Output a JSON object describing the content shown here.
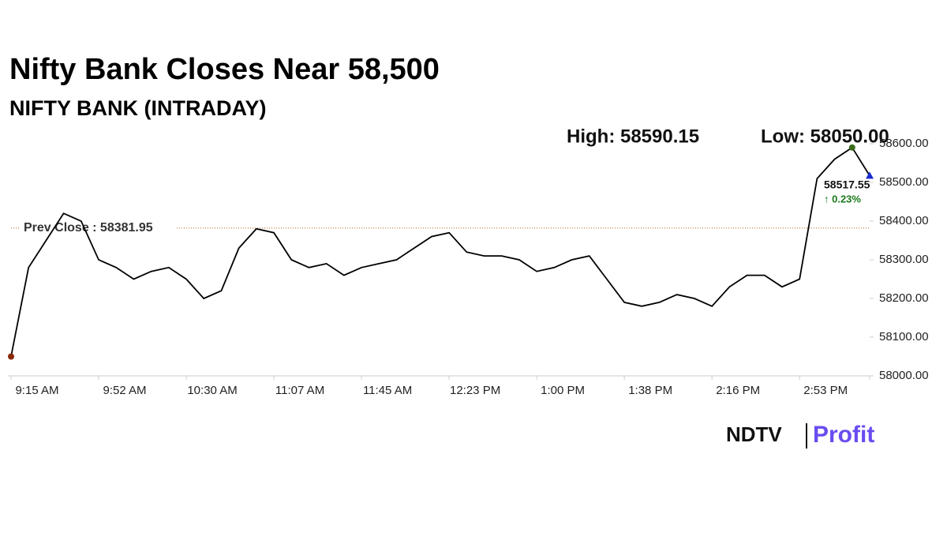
{
  "chart_data": {
    "type": "line",
    "title": "Nifty Bank Closes Near 58,500",
    "subtitle": "NIFTY BANK (INTRADAY)",
    "high": {
      "label": "High: 58590.15",
      "value": 58590.15
    },
    "low": {
      "label": "Low: 58050.00",
      "value": 58050
    },
    "prev_close": {
      "label": "Prev Close : 58381.95",
      "value": 58381.95
    },
    "change_label": "↑ 0.23%",
    "categories": [
      "9:15 AM",
      null,
      null,
      null,
      null,
      "9:52 AM",
      null,
      null,
      null,
      null,
      "10:30 AM",
      null,
      null,
      null,
      null,
      "11:07 AM",
      null,
      null,
      null,
      null,
      "11:45 AM",
      null,
      null,
      null,
      null,
      "12:23 PM",
      null,
      null,
      null,
      null,
      "1:00 PM",
      null,
      null,
      null,
      null,
      "1:38 PM",
      null,
      null,
      null,
      null,
      "2:16 PM",
      null,
      null,
      null,
      null,
      "2:53 PM",
      null,
      null,
      null,
      null
    ],
    "values": [
      58050,
      58280,
      58350,
      58420,
      58400,
      58300,
      58280,
      58250,
      58270,
      58280,
      58250,
      58200,
      58220,
      58330,
      58380,
      58370,
      58300,
      58280,
      58290,
      58260,
      58280,
      58290,
      58300,
      58330,
      58360,
      58370,
      58320,
      58310,
      58310,
      58300,
      58270,
      58280,
      58300,
      58310,
      58250,
      58190,
      58180,
      58190,
      58210,
      58200,
      58180,
      58230,
      58260,
      58260,
      58230,
      58250,
      58510,
      58560,
      58590.15,
      58517.55
    ],
    "color": "#000000",
    "ylim": [
      58000,
      58600
    ],
    "yticks": [
      {
        "value": 58000,
        "label": "58000.00"
      },
      {
        "value": 58100,
        "label": "58100.00"
      },
      {
        "value": 58200,
        "label": "58200.00"
      },
      {
        "value": 58300,
        "label": "58300.00"
      },
      {
        "value": 58400,
        "label": "58400.00"
      },
      {
        "value": 58500,
        "label": "58500.00"
      },
      {
        "value": 58600,
        "label": "58600.00"
      }
    ]
  },
  "logo": {
    "left": "NDTV",
    "right": "Profit"
  }
}
